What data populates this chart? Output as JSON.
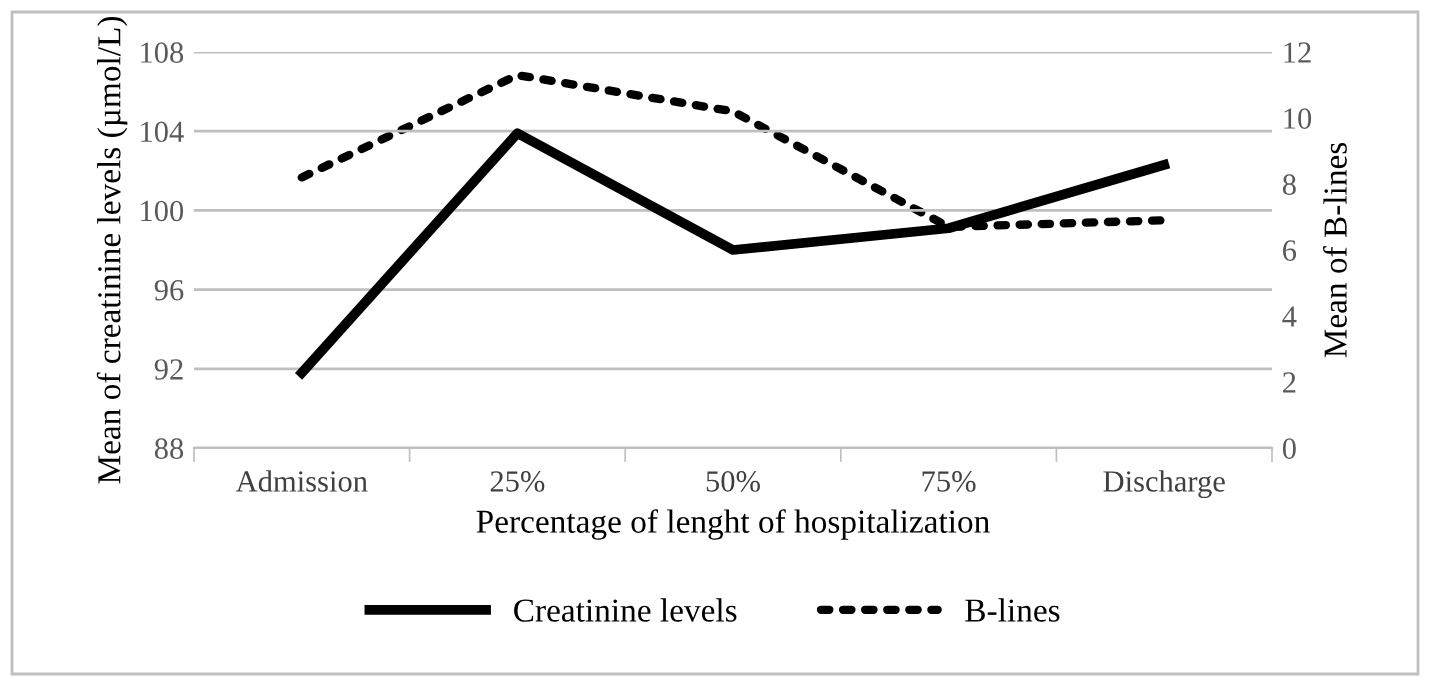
{
  "chart_data": {
    "type": "line",
    "xlabel": "Percentage of lenght of hospitalization",
    "ylabel": "Mean of creatinine levels (µmol/L)",
    "y2label": "Mean of B-lines",
    "categories": [
      "Admission",
      "25%",
      "50%",
      "75%",
      "Discharge"
    ],
    "series": [
      {
        "name": "Creatinine levels",
        "color": "#000000",
        "line_style": "solid",
        "values": [
          91.8,
          103.9,
          98.0,
          99.1,
          102.3
        ]
      },
      {
        "name": "B-lines",
        "color": "#000000",
        "line_style": "dotted",
        "axis": "y2",
        "values": [
          8.2,
          11.3,
          10.2,
          6.7,
          6.9
        ]
      }
    ],
    "ylim": [
      88,
      108
    ],
    "yticks": [
      88,
      92,
      96,
      100,
      104,
      108
    ],
    "y2lim": [
      0,
      12
    ],
    "y2ticks": [
      0,
      2,
      4,
      6,
      8,
      10,
      12
    ],
    "grid": "y",
    "legend": "bottom",
    "marker": "none"
  }
}
